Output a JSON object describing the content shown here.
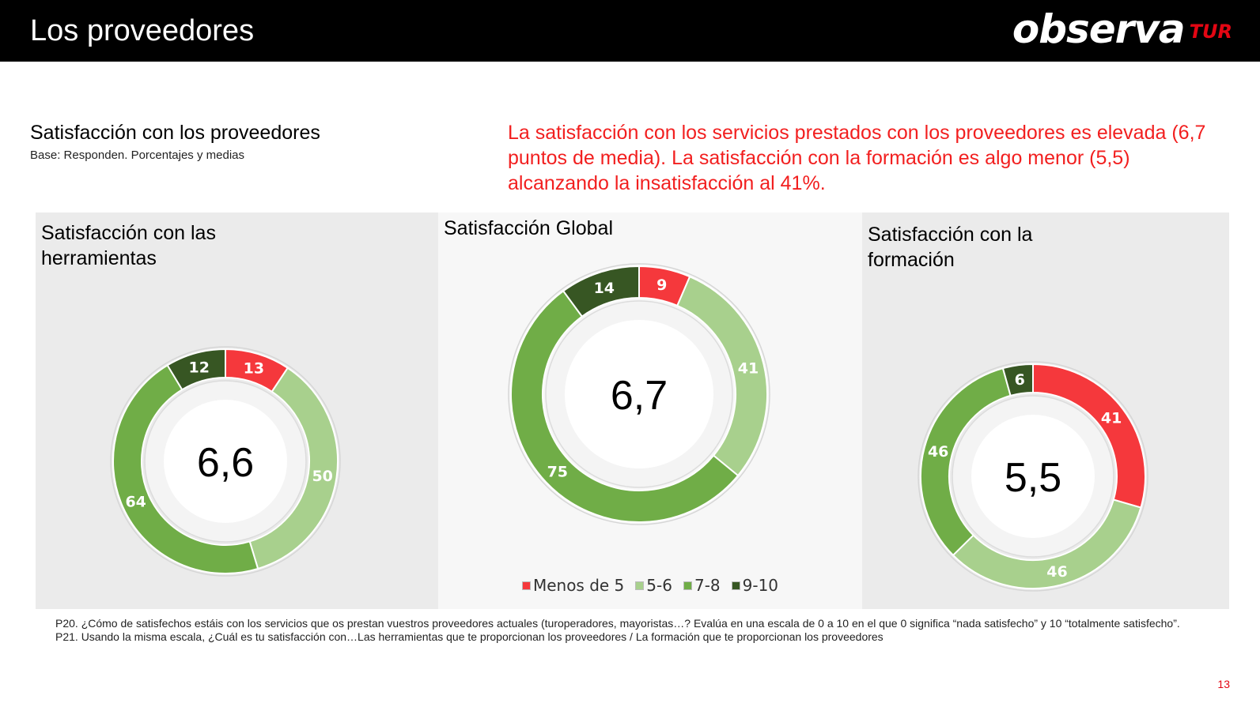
{
  "header": {
    "title": "Los proveedores",
    "logo_main": "observa",
    "logo_sub": "TUR"
  },
  "section": {
    "title": "Satisfacción con los proveedores",
    "subtitle": "Base: Responden.  Porcentajes y medias"
  },
  "highlight": "La satisfacción con los servicios prestados con los proveedores es elevada (6,7 puntos de media). La satisfacción con la formación es algo menor (5,5) alcanzando la insatisfacción al 41%.",
  "colors": {
    "menos5": "#f5383c",
    "c56": "#a8d08d",
    "c78": "#70ad47",
    "c910": "#375623",
    "accent": "#e30613"
  },
  "chart_data": [
    {
      "type": "pie",
      "title": "Satisfacción con las herramientas",
      "center_value": "6,6",
      "categories": [
        "Menos de 5",
        "5-6",
        "7-8",
        "9-10"
      ],
      "values": [
        13,
        50,
        64,
        12
      ]
    },
    {
      "type": "pie",
      "title": "Satisfacción Global",
      "center_value": "6,7",
      "categories": [
        "Menos de 5",
        "5-6",
        "7-8",
        "9-10"
      ],
      "values": [
        9,
        41,
        75,
        14
      ]
    },
    {
      "type": "pie",
      "title": "Satisfacción con la formación",
      "center_value": "5,5",
      "categories": [
        "Menos de 5",
        "5-6",
        "7-8",
        "9-10"
      ],
      "values": [
        41,
        46,
        46,
        6
      ]
    }
  ],
  "legend": [
    "Menos de 5",
    "5-6",
    "7-8",
    "9-10"
  ],
  "footnotes": [
    "P20. ¿Cómo de satisfechos estáis con los servicios que os prestan vuestros proveedores actuales (turoperadores, mayoristas…? Evalúa en una escala de 0 a 10 en el que 0 significa “nada satisfecho” y 10 “totalmente satisfecho”.",
    "P21. Usando la misma escala, ¿Cuál es tu satisfacción con…Las herramientas que te proporcionan los proveedores  / La formación que te proporcionan los proveedores"
  ],
  "page_number": "13"
}
